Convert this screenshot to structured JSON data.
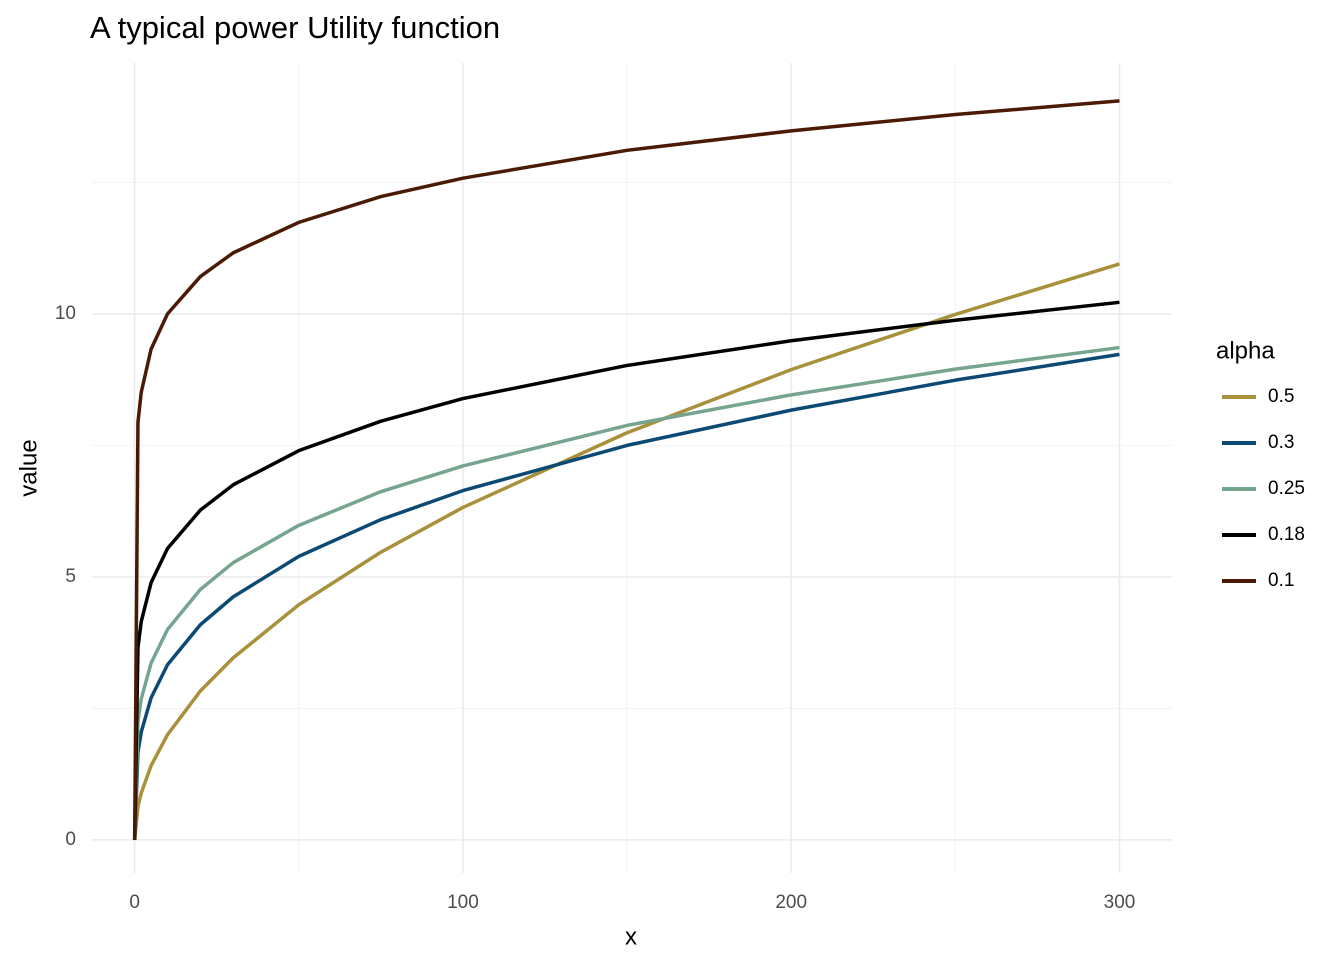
{
  "chart_data": {
    "type": "line",
    "title": "A typical power Utility function",
    "x_label": "x",
    "y_label": "value",
    "legend_title": "alpha",
    "x": [
      0,
      1,
      2,
      5,
      10,
      20,
      30,
      50,
      75,
      100,
      150,
      200,
      250,
      300
    ],
    "series": [
      {
        "name": "0.5",
        "color": "#a8913a",
        "values": [
          0,
          0.63,
          0.89,
          1.41,
          2.0,
          2.83,
          3.46,
          4.47,
          5.47,
          6.32,
          7.74,
          8.94,
          9.99,
          10.95
        ]
      },
      {
        "name": "0.3",
        "color": "#0c4a74",
        "values": [
          0,
          1.67,
          2.05,
          2.7,
          3.33,
          4.09,
          4.62,
          5.39,
          6.09,
          6.64,
          7.5,
          8.17,
          8.74,
          9.23
        ]
      },
      {
        "name": "0.25",
        "color": "#76a58f",
        "values": [
          0,
          2.25,
          2.68,
          3.36,
          4.0,
          4.76,
          5.27,
          5.98,
          6.62,
          7.11,
          7.88,
          8.46,
          8.95,
          9.36
        ]
      },
      {
        "name": "0.18",
        "color": "#000000",
        "values": [
          0,
          3.66,
          4.15,
          4.89,
          5.54,
          6.27,
          6.75,
          7.4,
          7.96,
          8.39,
          9.02,
          9.49,
          9.88,
          10.22
        ]
      },
      {
        "name": "0.1",
        "color": "#4a1a05",
        "values": [
          0,
          7.94,
          8.51,
          9.33,
          10.0,
          10.71,
          11.16,
          11.74,
          12.23,
          12.58,
          13.11,
          13.48,
          13.79,
          14.05
        ]
      }
    ],
    "xlim": [
      -13,
      316
    ],
    "ylim": [
      -0.63,
      14.77
    ],
    "xticks": [
      0,
      100,
      200,
      300
    ],
    "yticks": [
      0,
      5,
      10
    ],
    "grid": true,
    "legend": "right"
  }
}
